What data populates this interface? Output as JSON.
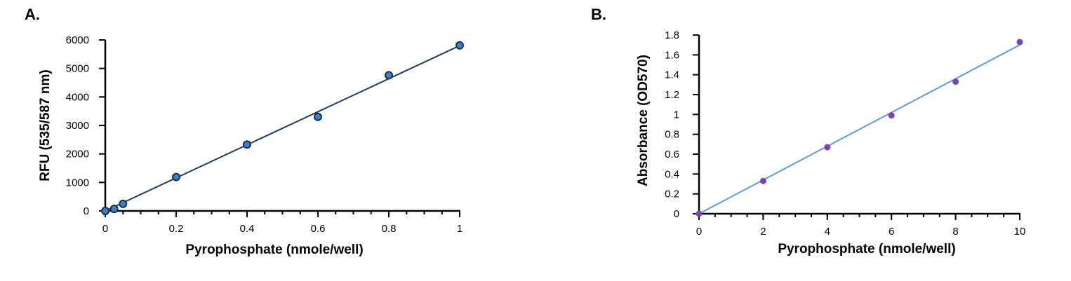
{
  "colors": {
    "axis": "#000000",
    "panel_a_line": "#1f3a5f",
    "panel_a_marker_fill": "#3f7fc7",
    "panel_a_marker_stroke": "#16304f",
    "panel_b_line": "#5b9bd9",
    "panel_b_marker_fill": "#7a45b5"
  },
  "chart_data": [
    {
      "type": "scatter",
      "panel_label": "A.",
      "xlabel": "Pyrophosphate (nmole/well)",
      "ylabel": "RFU (535/587 nm)",
      "xlim": [
        0,
        1
      ],
      "ylim": [
        0,
        6000
      ],
      "x_ticks": [
        0,
        0.2,
        0.4,
        0.6,
        0.8,
        1
      ],
      "x_tick_labels": [
        "0",
        "0.2",
        "0.4",
        "0.6",
        "0.8",
        "1"
      ],
      "x_minor_step": 0.05,
      "y_ticks": [
        0,
        1000,
        2000,
        3000,
        4000,
        5000,
        6000
      ],
      "y_tick_labels": [
        "0",
        "1000",
        "2000",
        "3000",
        "4000",
        "5000",
        "6000"
      ],
      "points": {
        "x": [
          0,
          0.025,
          0.05,
          0.2,
          0.4,
          0.6,
          0.8,
          1
        ],
        "y": [
          0,
          70,
          250,
          1190,
          2330,
          3300,
          4760,
          5810
        ]
      },
      "fit_line": {
        "x": [
          0,
          1
        ],
        "y": [
          0,
          5800
        ]
      },
      "grid": false
    },
    {
      "type": "scatter",
      "panel_label": "B.",
      "xlabel": "Pyrophosphate (nmole/well)",
      "ylabel": "Absorbance (OD570)",
      "xlim": [
        0,
        10
      ],
      "ylim": [
        0,
        1.8
      ],
      "x_ticks": [
        0,
        2,
        4,
        6,
        8,
        10
      ],
      "x_tick_labels": [
        "0",
        "2",
        "4",
        "6",
        "8",
        "10"
      ],
      "x_minor_step": 0.5,
      "y_ticks": [
        0,
        0.2,
        0.4,
        0.6,
        0.8,
        1,
        1.2,
        1.4,
        1.6,
        1.8
      ],
      "y_tick_labels": [
        "0",
        "0.2",
        "0.4",
        "0.6",
        "0.8",
        "1",
        "1.2",
        "1.4",
        "1.6",
        "1.8"
      ],
      "points": {
        "x": [
          0,
          2,
          4,
          6,
          8,
          10
        ],
        "y": [
          0,
          0.33,
          0.67,
          0.99,
          1.33,
          1.73
        ]
      },
      "fit_line": {
        "x": [
          0,
          10
        ],
        "y": [
          0,
          1.7
        ]
      },
      "grid": false
    }
  ]
}
